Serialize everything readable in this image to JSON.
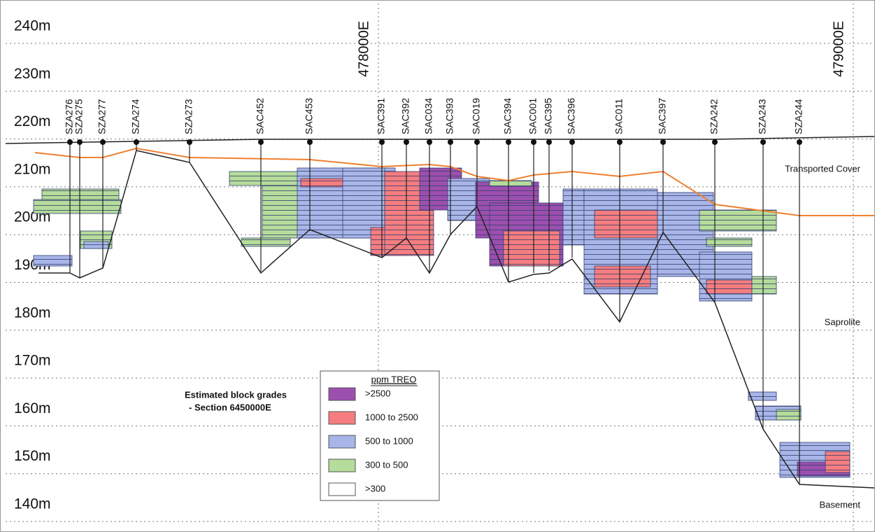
{
  "axis": {
    "elevations": [
      "240m",
      "230m",
      "220m",
      "210m",
      "200m",
      "190m",
      "180m",
      "170m",
      "160m",
      "150m",
      "140m"
    ],
    "eastings": [
      "478000E",
      "479000E"
    ]
  },
  "drill_holes": [
    "SZA276",
    "SZA275",
    "SZA277",
    "SZA274",
    "SZA273",
    "SAC452",
    "SAC453",
    "SAC391",
    "SAC392",
    "SAC034",
    "SAC393",
    "SAC019",
    "SAC394",
    "SAC001",
    "SAC395",
    "SAC396",
    "SAC011",
    "SAC397",
    "SZA242",
    "SZA243",
    "SZA244"
  ],
  "zones": [
    "Transported Cover",
    "Saprolite",
    "Basement"
  ],
  "caption": [
    "Estimated block grades",
    "- Section 6450000E"
  ],
  "legend": {
    "title": "ppm TREO",
    "items": [
      {
        "label": ">2500",
        "color": "#9c4fae"
      },
      {
        "label": "1000 to 2500",
        "color": "#f57d7f"
      },
      {
        "label": "500 to 1000",
        "color": "#a8b5e8"
      },
      {
        "label": "300 to 500",
        "color": "#b5dc9b"
      },
      {
        "label": ">300",
        "color": "#ffffff"
      }
    ]
  }
}
